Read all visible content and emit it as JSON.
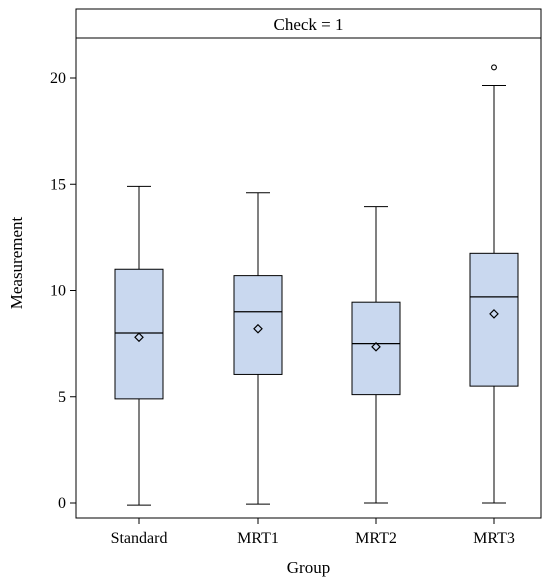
{
  "panel_title": "Check = 1",
  "colors": {
    "box_fill": "#c9d8ef",
    "box_stroke": "#000000",
    "background": "#ffffff"
  },
  "chart_data": {
    "type": "box",
    "title": "",
    "xlabel": "Group",
    "ylabel": "Measurement",
    "ylim": [
      -0.4,
      22.0
    ],
    "yticks": [
      0,
      5,
      10,
      15,
      20
    ],
    "categories": [
      "Standard",
      "MRT1",
      "MRT2",
      "MRT3"
    ],
    "boxes": [
      {
        "category": "Standard",
        "min": -0.1,
        "q1": 4.9,
        "median": 8.0,
        "q3": 11.0,
        "max": 14.9,
        "mean": 7.8,
        "outliers": []
      },
      {
        "category": "MRT1",
        "min": -0.05,
        "q1": 6.05,
        "median": 9.0,
        "q3": 10.7,
        "max": 14.6,
        "mean": 8.2,
        "outliers": []
      },
      {
        "category": "MRT2",
        "min": 0.0,
        "q1": 5.1,
        "median": 7.5,
        "q3": 9.45,
        "max": 13.95,
        "mean": 7.35,
        "outliers": []
      },
      {
        "category": "MRT3",
        "min": 0.0,
        "q1": 5.5,
        "median": 9.7,
        "q3": 11.75,
        "max": 19.65,
        "mean": 8.9,
        "outliers": [
          20.5
        ]
      }
    ],
    "grid": false,
    "legend": "none"
  }
}
